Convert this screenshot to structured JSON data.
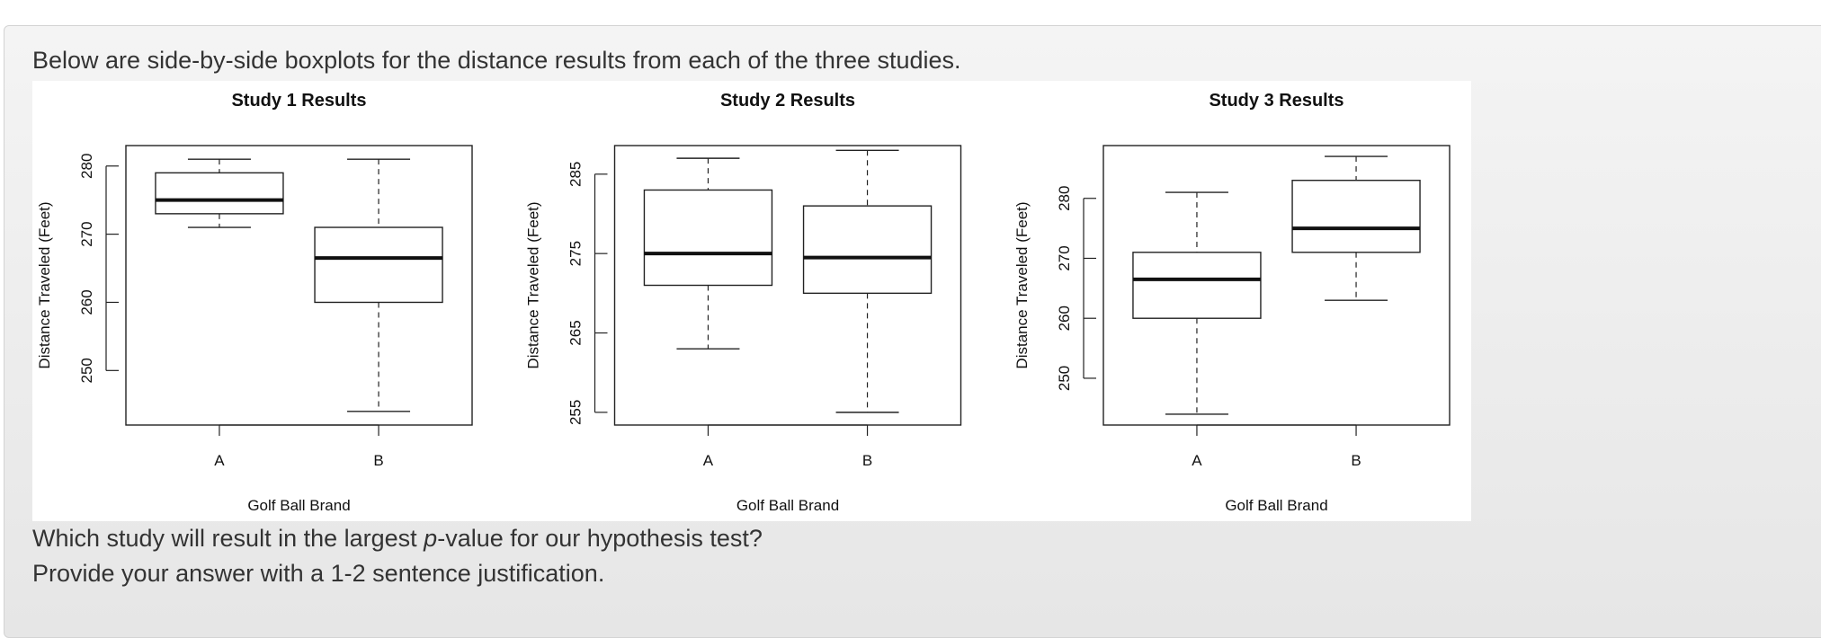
{
  "question": {
    "intro": "Below are side-by-side boxplots for the distance results from each of the three studies.",
    "prompt_before": "Which study will result in the largest ",
    "prompt_italic": "p",
    "prompt_after": "-value for our hypothesis test?",
    "instruction": "Provide your answer with a 1-2 sentence justification."
  },
  "chart_data": [
    {
      "type": "boxplot",
      "title": "Study 1 Results",
      "xlabel": "Golf Ball Brand",
      "ylabel": "Distance Traveled (Feet)",
      "categories": [
        "A",
        "B"
      ],
      "ylim": [
        242,
        283
      ],
      "yticks": [
        250,
        260,
        270,
        280
      ],
      "boxes": [
        {
          "name": "A",
          "min": 271,
          "q1": 273,
          "median": 275,
          "q3": 279,
          "max": 281
        },
        {
          "name": "B",
          "min": 244,
          "q1": 260,
          "median": 266.5,
          "q3": 271,
          "max": 281
        }
      ]
    },
    {
      "type": "boxplot",
      "title": "Study 2 Results",
      "xlabel": "Golf Ball Brand",
      "ylabel": "Distance Traveled (Feet)",
      "categories": [
        "A",
        "B"
      ],
      "ylim": [
        253.4,
        288.6
      ],
      "yticks": [
        255,
        265,
        275,
        285
      ],
      "boxes": [
        {
          "name": "A",
          "min": 263,
          "q1": 271,
          "median": 275,
          "q3": 283,
          "max": 287
        },
        {
          "name": "B",
          "min": 255,
          "q1": 270,
          "median": 274.5,
          "q3": 281,
          "max": 288
        }
      ]
    },
    {
      "type": "boxplot",
      "title": "Study 3 Results",
      "xlabel": "Golf Ball Brand",
      "ylabel": "Distance Traveled (Feet)",
      "categories": [
        "A",
        "B"
      ],
      "ylim": [
        242.2,
        288.8
      ],
      "yticks": [
        250,
        260,
        270,
        280
      ],
      "boxes": [
        {
          "name": "A",
          "min": 244,
          "q1": 260,
          "median": 266.5,
          "q3": 271,
          "max": 281
        },
        {
          "name": "B",
          "min": 263,
          "q1": 271,
          "median": 275,
          "q3": 283,
          "max": 287
        }
      ]
    }
  ]
}
